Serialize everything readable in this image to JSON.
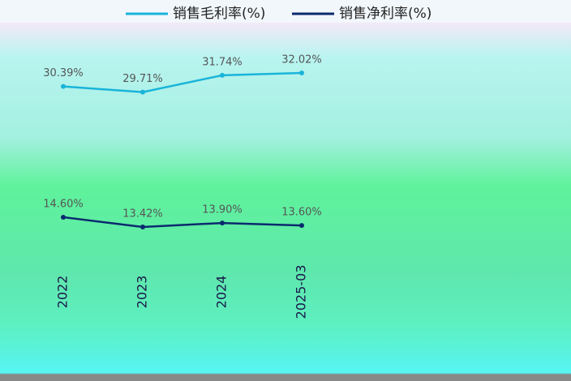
{
  "chart_data": {
    "type": "line",
    "categories": [
      "2022",
      "2023",
      "2024",
      "2025-03"
    ],
    "series": [
      {
        "name": "销售毛利率(%)",
        "color": "#19b4d9",
        "values": [
          30.39,
          29.71,
          31.74,
          32.02
        ],
        "value_labels": [
          "30.39%",
          "29.71%",
          "31.74%",
          "32.02%"
        ]
      },
      {
        "name": "销售净利率(%)",
        "color": "#0b2a6e",
        "values": [
          14.6,
          13.42,
          13.9,
          13.6
        ],
        "value_labels": [
          "14.60%",
          "13.42%",
          "13.90%",
          "13.60%"
        ]
      }
    ]
  }
}
